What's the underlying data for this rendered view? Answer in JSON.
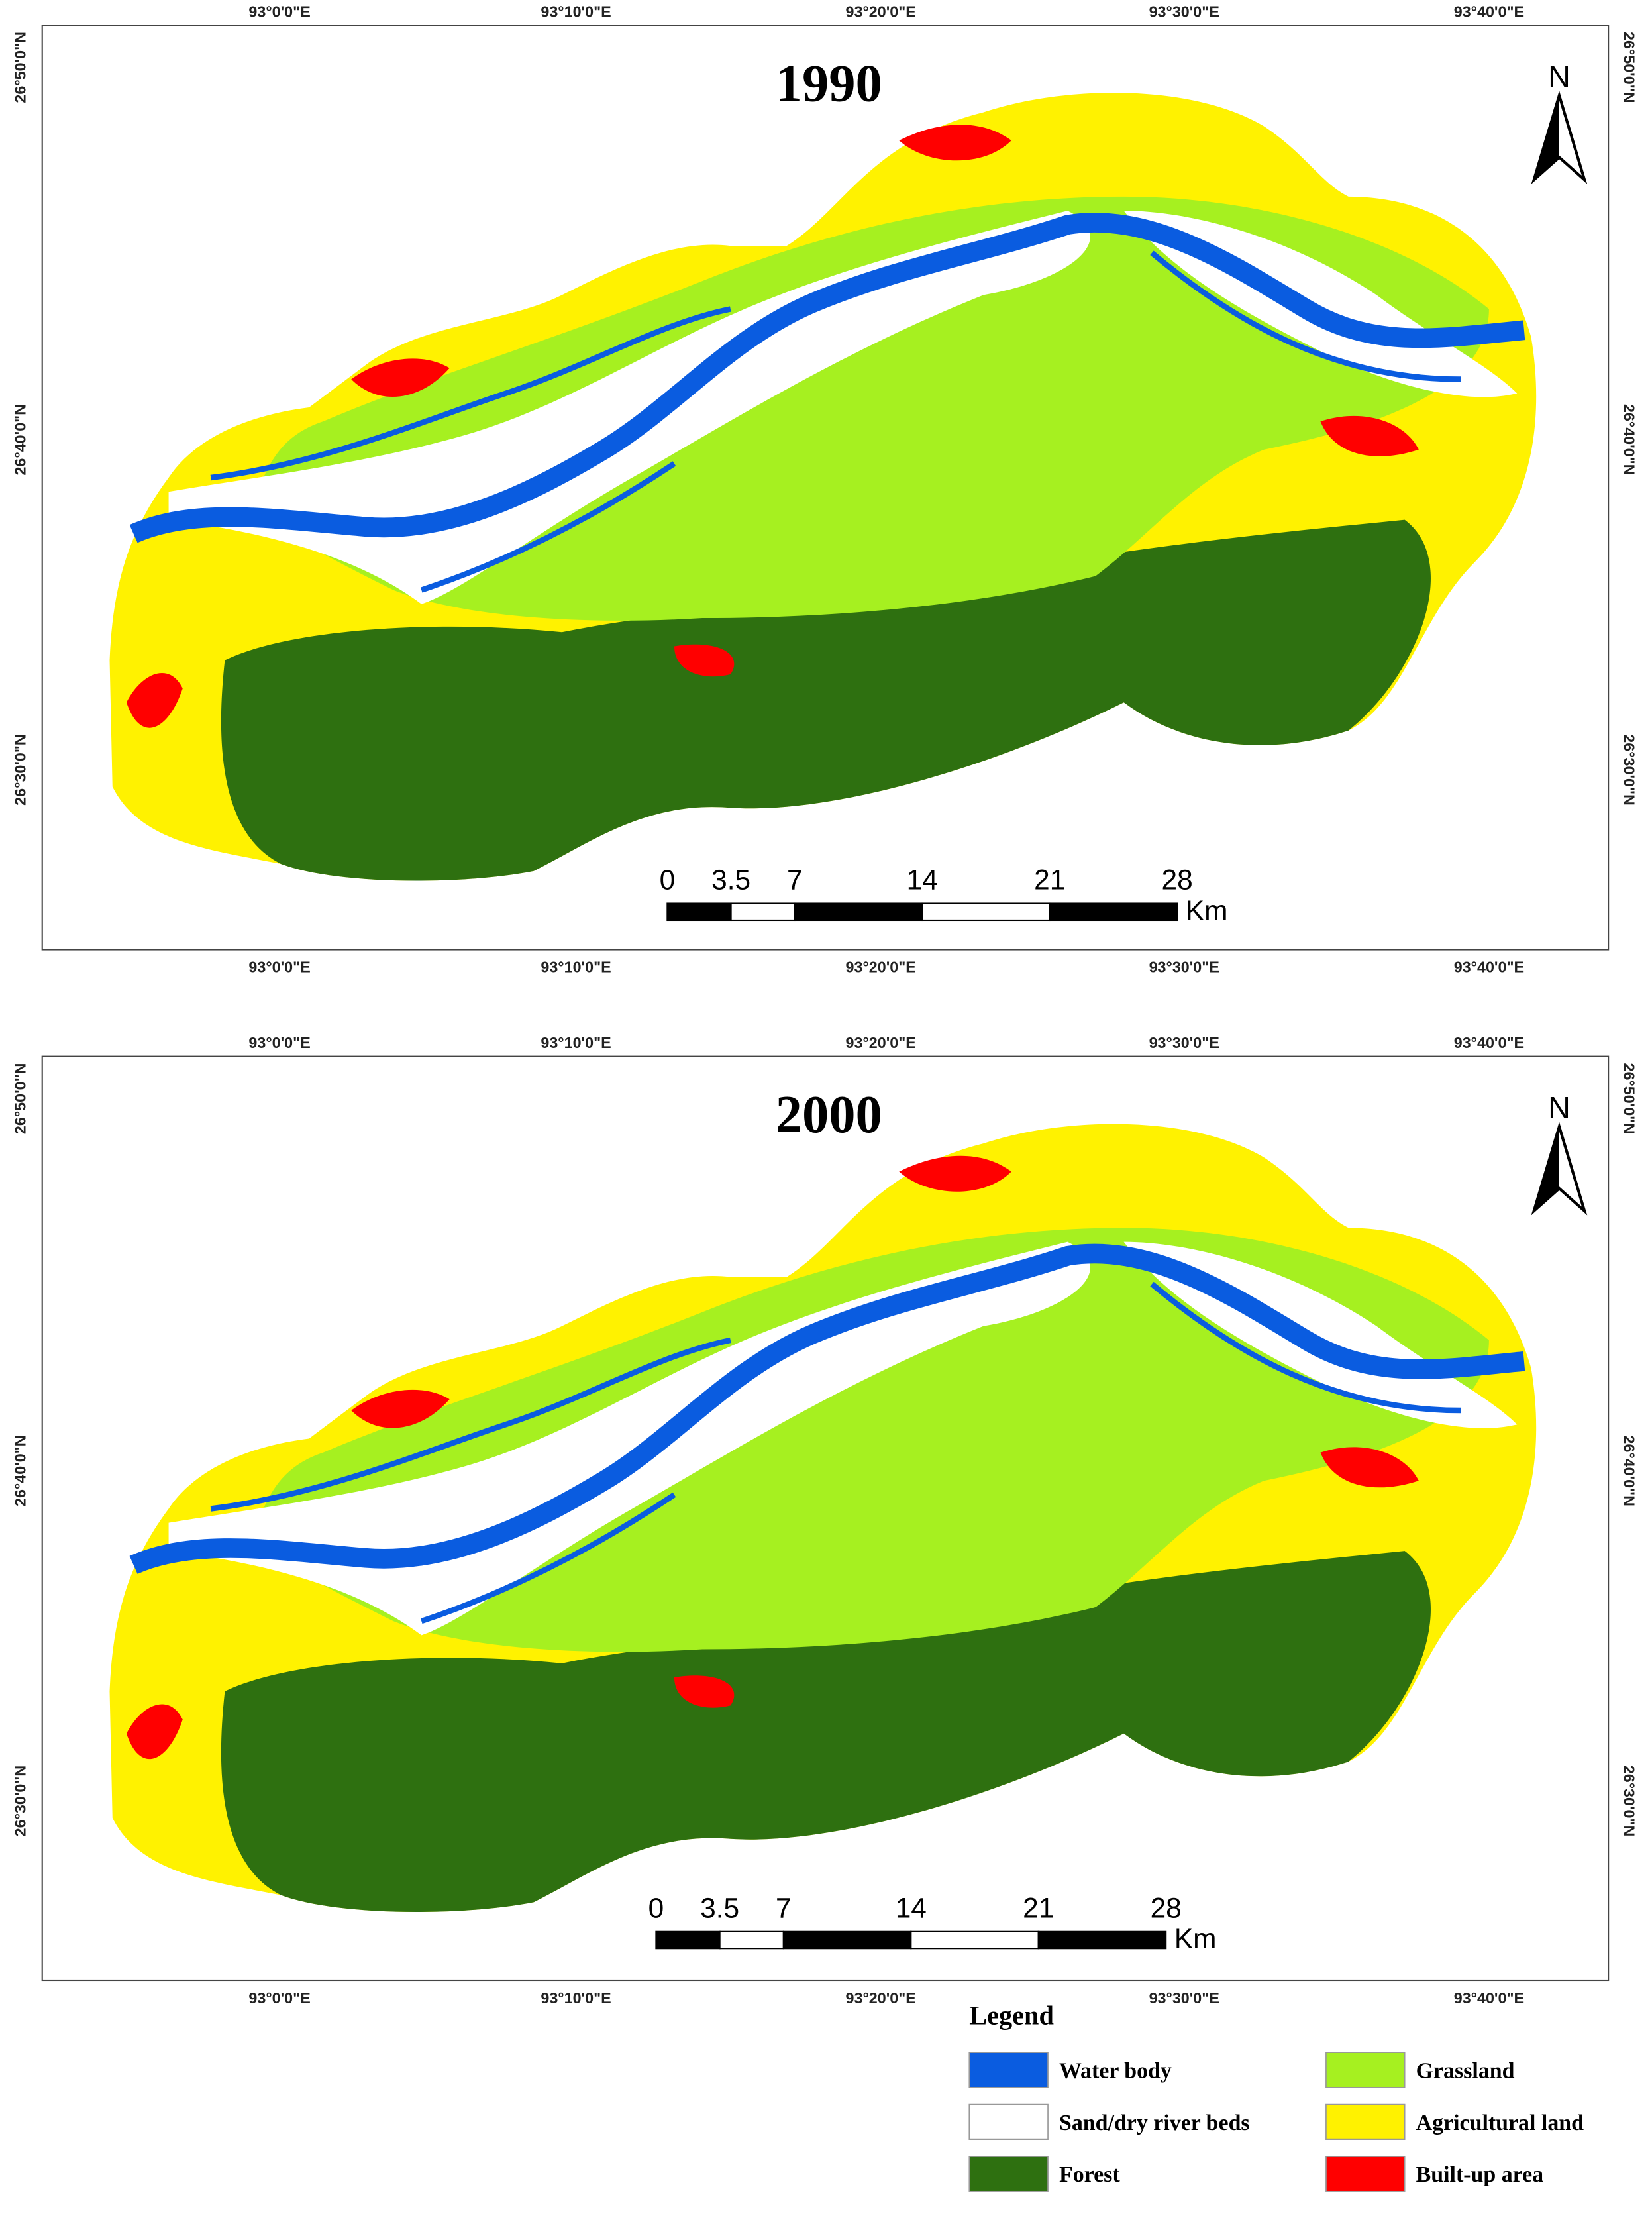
{
  "maps": [
    {
      "title": "1990",
      "north": "N",
      "top_labels": [
        "93°0'0\"E",
        "93°10'0\"E",
        "93°20'0\"E",
        "93°30'0\"E",
        "93°40'0\"E"
      ],
      "bottom_labels": [
        "93°0'0\"E",
        "93°10'0\"E",
        "93°20'0\"E",
        "93°30'0\"E",
        "93°40'0\"E"
      ],
      "left_labels": [
        "26°50'0\"N",
        "26°40'0\"N",
        "26°30'0\"N"
      ],
      "right_labels": [
        "26°50'0\"N",
        "26°40'0\"N",
        "26°30'0\"N"
      ],
      "scale": [
        0,
        3.5,
        7,
        14,
        21,
        28
      ],
      "scale_unit": "Km"
    },
    {
      "title": "2000",
      "north": "N",
      "top_labels": [
        "93°0'0\"E",
        "93°10'0\"E",
        "93°20'0\"E",
        "93°30'0\"E",
        "93°40'0\"E"
      ],
      "bottom_labels": [
        "93°0'0\"E",
        "93°10'0\"E",
        "93°20'0\"E",
        "93°30'0\"E",
        "93°40'0\"E"
      ],
      "left_labels": [
        "26°50'0\"N",
        "26°40'0\"N",
        "26°30'0\"N"
      ],
      "right_labels": [
        "26°50'0\"N",
        "26°40'0\"N",
        "26°30'0\"N"
      ],
      "scale": [
        0,
        3.5,
        7,
        14,
        21,
        28
      ],
      "scale_unit": "Km"
    }
  ],
  "legend": {
    "title": "Legend",
    "items": [
      {
        "label": "Water body",
        "color": "#0a5ce0"
      },
      {
        "label": "Sand/dry river beds",
        "color": "#ffffff"
      },
      {
        "label": "Forest",
        "color": "#2e7010"
      },
      {
        "label": "Grassland",
        "color": "#a6f020"
      },
      {
        "label": "Agricultural land",
        "color": "#fff200"
      },
      {
        "label": "Built-up area",
        "color": "#ff0000"
      }
    ]
  }
}
